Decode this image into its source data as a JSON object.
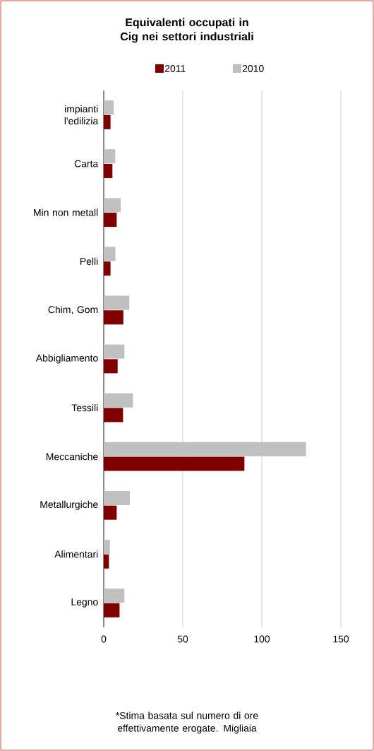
{
  "chart_data": {
    "type": "bar",
    "orientation": "horizontal",
    "title": "Equivalenti occupati in Cig nei settori industriali",
    "categories": [
      "impianti l'edilizia",
      "Carta",
      "Min non metall",
      "Pelli",
      "Chim, Gom",
      "Abbigliamento",
      "Tessili",
      "Meccaniche",
      "Metallurgiche",
      "Alimentari",
      "Legno"
    ],
    "series": [
      {
        "name": "2011",
        "color": "#800000",
        "values": [
          4.3,
          5.5,
          8.2,
          4.3,
          12.4,
          8.8,
          12.2,
          89,
          8.2,
          3.3,
          10.0
        ]
      },
      {
        "name": "2010",
        "color": "#c0c0c0",
        "values": [
          6.3,
          7.3,
          10.7,
          7.4,
          16.2,
          13.1,
          18.5,
          128,
          16.5,
          3.9,
          13.1
        ]
      }
    ],
    "xlim": [
      0,
      150
    ],
    "xticks": [
      0,
      50,
      100,
      150
    ],
    "grid": "x",
    "legend": "top",
    "annotations": [
      "*Stima basata sul numero di ore effettivamente erogate. Migliaia"
    ]
  }
}
